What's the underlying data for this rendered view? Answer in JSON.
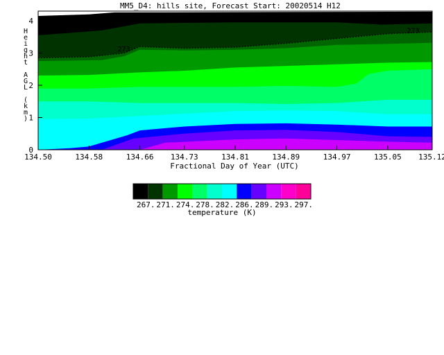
{
  "chart_data": {
    "type": "heatmap",
    "title": "MM5_D4: hills site,  Forecast Start: 20020514 H12",
    "xlabel": "Fractional Day of Year (UTC)",
    "ylabel": "Height AGL (km)",
    "x_ticks": [
      "134.50",
      "134.58",
      "134.66",
      "134.73",
      "134.81",
      "134.89",
      "134.97",
      "135.05",
      "135.12"
    ],
    "y_ticks": [
      "0",
      "1",
      "2",
      "3",
      "4"
    ],
    "xlim": [
      134.5,
      135.12
    ],
    "ylim": [
      0,
      4.3
    ],
    "contour_label": "273",
    "contour_line_km": [
      [
        134.5,
        2.85
      ],
      [
        134.58,
        2.88
      ],
      [
        134.635,
        3.0
      ],
      [
        134.66,
        3.2
      ],
      [
        134.73,
        3.15
      ],
      [
        134.81,
        3.18
      ],
      [
        134.89,
        3.3
      ],
      [
        134.97,
        3.45
      ],
      [
        135.05,
        3.6
      ],
      [
        135.12,
        3.65
      ]
    ],
    "levels": [
      {
        "color": "#000000",
        "bounds": [
          [
            134.5,
            4.15
          ],
          [
            134.58,
            4.2
          ],
          [
            134.62,
            4.26
          ],
          [
            135.12,
            4.28
          ]
        ]
      },
      {
        "color": "#003300",
        "bounds": [
          [
            134.5,
            3.55
          ],
          [
            134.6,
            3.7
          ],
          [
            134.66,
            3.92
          ],
          [
            134.81,
            3.95
          ],
          [
            134.97,
            3.95
          ],
          [
            135.04,
            3.88
          ],
          [
            135.12,
            3.92
          ]
        ]
      },
      {
        "color": "#006600",
        "bounds": [
          [
            134.5,
            2.85
          ],
          [
            134.58,
            2.88
          ],
          [
            134.635,
            3.0
          ],
          [
            134.66,
            3.2
          ],
          [
            134.73,
            3.15
          ],
          [
            134.81,
            3.18
          ],
          [
            134.89,
            3.3
          ],
          [
            134.97,
            3.45
          ],
          [
            135.05,
            3.6
          ],
          [
            135.12,
            3.65
          ]
        ]
      },
      {
        "color": "#009900",
        "bounds": [
          [
            134.5,
            2.75
          ],
          [
            134.6,
            2.78
          ],
          [
            134.635,
            2.9
          ],
          [
            134.66,
            3.1
          ],
          [
            134.73,
            3.08
          ],
          [
            134.81,
            3.1
          ],
          [
            134.89,
            3.15
          ],
          [
            134.97,
            3.25
          ],
          [
            135.05,
            3.28
          ],
          [
            135.12,
            3.32
          ]
        ]
      },
      {
        "color": "#00ff00",
        "bounds": [
          [
            134.5,
            2.3
          ],
          [
            134.58,
            2.32
          ],
          [
            134.66,
            2.4
          ],
          [
            134.73,
            2.45
          ],
          [
            134.81,
            2.55
          ],
          [
            134.89,
            2.6
          ],
          [
            134.97,
            2.65
          ],
          [
            135.05,
            2.7
          ],
          [
            135.12,
            2.72
          ]
        ]
      },
      {
        "color": "#00ff66",
        "bounds": [
          [
            134.5,
            1.9
          ],
          [
            134.58,
            1.9
          ],
          [
            134.66,
            1.95
          ],
          [
            134.73,
            1.95
          ],
          [
            134.81,
            1.95
          ],
          [
            134.89,
            1.98
          ],
          [
            134.97,
            1.95
          ],
          [
            135.0,
            2.05
          ],
          [
            135.02,
            2.35
          ],
          [
            135.05,
            2.45
          ],
          [
            135.12,
            2.5
          ]
        ]
      },
      {
        "color": "#00ffcc",
        "bounds": [
          [
            134.5,
            1.5
          ],
          [
            134.58,
            1.5
          ],
          [
            134.66,
            1.45
          ],
          [
            134.73,
            1.45
          ],
          [
            134.81,
            1.45
          ],
          [
            134.89,
            1.42
          ],
          [
            134.97,
            1.45
          ],
          [
            135.05,
            1.55
          ],
          [
            135.12,
            1.55
          ]
        ]
      },
      {
        "color": "#00ffff",
        "bounds": [
          [
            134.5,
            0.95
          ],
          [
            134.58,
            0.97
          ],
          [
            134.66,
            1.05
          ],
          [
            134.73,
            1.12
          ],
          [
            134.81,
            1.2
          ],
          [
            134.89,
            1.22
          ],
          [
            134.97,
            1.2
          ],
          [
            135.05,
            1.1
          ],
          [
            135.12,
            1.1
          ]
        ]
      },
      {
        "color": "#0000ff",
        "bounds": [
          [
            134.5,
            0.0
          ],
          [
            134.55,
            0.05
          ],
          [
            134.58,
            0.1
          ],
          [
            134.64,
            0.45
          ],
          [
            134.66,
            0.6
          ],
          [
            134.73,
            0.72
          ],
          [
            134.81,
            0.8
          ],
          [
            134.89,
            0.82
          ],
          [
            134.97,
            0.78
          ],
          [
            135.05,
            0.72
          ],
          [
            135.12,
            0.72
          ]
        ]
      },
      {
        "color": "#6600ff",
        "bounds": [
          [
            134.6,
            0.0
          ],
          [
            134.65,
            0.35
          ],
          [
            134.73,
            0.5
          ],
          [
            134.81,
            0.6
          ],
          [
            134.89,
            0.62
          ],
          [
            134.97,
            0.55
          ],
          [
            135.05,
            0.42
          ],
          [
            135.12,
            0.4
          ]
        ]
      },
      {
        "color": "#cc00ff",
        "bounds": [
          [
            134.66,
            0.0
          ],
          [
            134.7,
            0.22
          ],
          [
            134.81,
            0.32
          ],
          [
            134.89,
            0.35
          ],
          [
            134.97,
            0.3
          ],
          [
            135.05,
            0.25
          ],
          [
            135.12,
            0.22
          ]
        ]
      },
      {
        "color": "#ff00cc",
        "bounds": [
          [
            134.5,
            0.0
          ],
          [
            135.12,
            0.0
          ]
        ]
      }
    ],
    "wedge": {
      "color": "#6600ff",
      "points": [
        [
          134.56,
          0.16
        ],
        [
          134.615,
          0.0
        ],
        [
          134.58,
          0.1
        ]
      ]
    },
    "colorbar": {
      "colors": [
        "#000000",
        "#003300",
        "#009900",
        "#00ff00",
        "#00ff66",
        "#00ffcc",
        "#00ffff",
        "#0000ff",
        "#6600ff",
        "#cc00ff",
        "#ff00cc",
        "#ff0099"
      ],
      "labels": [
        "267.",
        "271.",
        "274.",
        "278.",
        "282.",
        "286.",
        "289.",
        "293.",
        "297."
      ],
      "title": "temperature (K)"
    }
  }
}
